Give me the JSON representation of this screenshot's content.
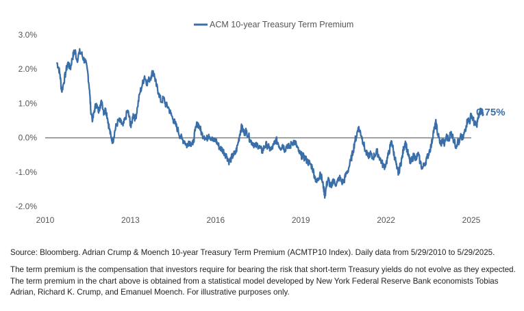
{
  "colors": {
    "series": "#3a6ea8",
    "zero_line": "#808080",
    "tick_text": "#555555"
  },
  "chart_data": {
    "type": "line",
    "series": [
      {
        "name": "ACM 10-year Treasury Term Premium",
        "points": [
          [
            2010.41,
            2.2
          ],
          [
            2010.47,
            2.05
          ],
          [
            2010.52,
            1.85
          ],
          [
            2010.58,
            1.35
          ],
          [
            2010.65,
            1.6
          ],
          [
            2010.72,
            1.9
          ],
          [
            2010.8,
            2.2
          ],
          [
            2010.88,
            2.0
          ],
          [
            2010.95,
            2.3
          ],
          [
            2011.0,
            2.45
          ],
          [
            2011.05,
            2.55
          ],
          [
            2011.12,
            2.25
          ],
          [
            2011.2,
            2.5
          ],
          [
            2011.28,
            2.45
          ],
          [
            2011.35,
            2.3
          ],
          [
            2011.42,
            2.2
          ],
          [
            2011.5,
            1.9
          ],
          [
            2011.56,
            1.4
          ],
          [
            2011.6,
            0.85
          ],
          [
            2011.67,
            0.5
          ],
          [
            2011.73,
            0.8
          ],
          [
            2011.8,
            1.0
          ],
          [
            2011.87,
            0.75
          ],
          [
            2011.93,
            0.95
          ],
          [
            2012.0,
            1.05
          ],
          [
            2012.07,
            0.7
          ],
          [
            2012.13,
            0.85
          ],
          [
            2012.2,
            0.55
          ],
          [
            2012.25,
            0.3
          ],
          [
            2012.32,
            0.0
          ],
          [
            2012.38,
            -0.1
          ],
          [
            2012.44,
            0.15
          ],
          [
            2012.5,
            0.35
          ],
          [
            2012.58,
            0.5
          ],
          [
            2012.66,
            0.45
          ],
          [
            2012.74,
            0.35
          ],
          [
            2012.82,
            0.55
          ],
          [
            2012.9,
            0.8
          ],
          [
            2012.96,
            0.6
          ],
          [
            2013.02,
            0.3
          ],
          [
            2013.1,
            0.7
          ],
          [
            2013.18,
            0.55
          ],
          [
            2013.25,
            0.9
          ],
          [
            2013.33,
            1.3
          ],
          [
            2013.42,
            1.55
          ],
          [
            2013.5,
            1.8
          ],
          [
            2013.58,
            1.6
          ],
          [
            2013.66,
            1.7
          ],
          [
            2013.73,
            1.8
          ],
          [
            2013.8,
            1.95
          ],
          [
            2013.86,
            1.75
          ],
          [
            2013.92,
            1.5
          ],
          [
            2014.0,
            1.3
          ],
          [
            2014.08,
            1.05
          ],
          [
            2014.17,
            1.15
          ],
          [
            2014.25,
            0.95
          ],
          [
            2014.33,
            0.9
          ],
          [
            2014.42,
            0.7
          ],
          [
            2014.5,
            0.55
          ],
          [
            2014.58,
            0.4
          ],
          [
            2014.66,
            0.25
          ],
          [
            2014.75,
            0.05
          ],
          [
            2014.83,
            -0.05
          ],
          [
            2014.91,
            -0.1
          ],
          [
            2015.0,
            -0.25
          ],
          [
            2015.05,
            -0.1
          ],
          [
            2015.12,
            -0.15
          ],
          [
            2015.2,
            -0.2
          ],
          [
            2015.28,
            0.2
          ],
          [
            2015.36,
            0.45
          ],
          [
            2015.44,
            0.3
          ],
          [
            2015.52,
            0.1
          ],
          [
            2015.6,
            0.05
          ],
          [
            2015.68,
            -0.05
          ],
          [
            2015.76,
            0.1
          ],
          [
            2015.84,
            0.0
          ],
          [
            2015.92,
            -0.1
          ],
          [
            2016.0,
            -0.05
          ],
          [
            2016.08,
            -0.2
          ],
          [
            2016.16,
            -0.3
          ],
          [
            2016.24,
            -0.35
          ],
          [
            2016.32,
            -0.45
          ],
          [
            2016.4,
            -0.55
          ],
          [
            2016.48,
            -0.7
          ],
          [
            2016.55,
            -0.6
          ],
          [
            2016.62,
            -0.5
          ],
          [
            2016.7,
            -0.45
          ],
          [
            2016.78,
            -0.2
          ],
          [
            2016.85,
            0.1
          ],
          [
            2016.9,
            0.3
          ],
          [
            2016.95,
            0.25
          ],
          [
            2017.0,
            0.15
          ],
          [
            2017.08,
            0.2
          ],
          [
            2017.16,
            0.05
          ],
          [
            2017.24,
            -0.1
          ],
          [
            2017.32,
            -0.15
          ],
          [
            2017.4,
            -0.25
          ],
          [
            2017.48,
            -0.2
          ],
          [
            2017.56,
            -0.3
          ],
          [
            2017.64,
            -0.4
          ],
          [
            2017.72,
            -0.25
          ],
          [
            2017.8,
            -0.2
          ],
          [
            2017.88,
            -0.3
          ],
          [
            2017.96,
            -0.35
          ],
          [
            2018.05,
            -0.2
          ],
          [
            2018.12,
            -0.05
          ],
          [
            2018.2,
            -0.15
          ],
          [
            2018.28,
            -0.3
          ],
          [
            2018.36,
            -0.2
          ],
          [
            2018.44,
            -0.35
          ],
          [
            2018.52,
            -0.2
          ],
          [
            2018.6,
            -0.3
          ],
          [
            2018.68,
            -0.15
          ],
          [
            2018.76,
            -0.1
          ],
          [
            2018.84,
            -0.2
          ],
          [
            2018.92,
            -0.4
          ],
          [
            2019.0,
            -0.5
          ],
          [
            2019.08,
            -0.55
          ],
          [
            2019.16,
            -0.6
          ],
          [
            2019.24,
            -0.7
          ],
          [
            2019.32,
            -0.75
          ],
          [
            2019.4,
            -0.85
          ],
          [
            2019.48,
            -1.1
          ],
          [
            2019.56,
            -1.3
          ],
          [
            2019.62,
            -1.2
          ],
          [
            2019.68,
            -1.0
          ],
          [
            2019.74,
            -1.2
          ],
          [
            2019.8,
            -1.45
          ],
          [
            2019.85,
            -1.7
          ],
          [
            2019.9,
            -1.4
          ],
          [
            2019.96,
            -1.2
          ],
          [
            2020.02,
            -1.35
          ],
          [
            2020.08,
            -1.45
          ],
          [
            2020.14,
            -1.2
          ],
          [
            2020.2,
            -1.35
          ],
          [
            2020.28,
            -1.3
          ],
          [
            2020.36,
            -1.15
          ],
          [
            2020.44,
            -1.3
          ],
          [
            2020.52,
            -1.25
          ],
          [
            2020.6,
            -1.05
          ],
          [
            2020.68,
            -0.9
          ],
          [
            2020.76,
            -0.65
          ],
          [
            2020.84,
            -0.4
          ],
          [
            2020.9,
            -0.1
          ],
          [
            2020.96,
            0.05
          ],
          [
            2021.02,
            0.3
          ],
          [
            2021.08,
            0.2
          ],
          [
            2021.14,
            0.05
          ],
          [
            2021.2,
            -0.15
          ],
          [
            2021.28,
            -0.4
          ],
          [
            2021.36,
            -0.55
          ],
          [
            2021.44,
            -0.45
          ],
          [
            2021.52,
            -0.6
          ],
          [
            2021.6,
            -0.5
          ],
          [
            2021.68,
            -0.4
          ],
          [
            2021.76,
            -0.55
          ],
          [
            2021.84,
            -0.7
          ],
          [
            2021.92,
            -0.85
          ],
          [
            2022.0,
            -0.75
          ],
          [
            2022.08,
            -0.5
          ],
          [
            2022.15,
            -0.25
          ],
          [
            2022.2,
            -0.1
          ],
          [
            2022.26,
            -0.4
          ],
          [
            2022.32,
            -0.6
          ],
          [
            2022.38,
            -0.9
          ],
          [
            2022.44,
            -1.05
          ],
          [
            2022.5,
            -0.8
          ],
          [
            2022.56,
            -0.6
          ],
          [
            2022.62,
            -0.3
          ],
          [
            2022.68,
            -0.1
          ],
          [
            2022.74,
            -0.35
          ],
          [
            2022.8,
            -0.55
          ],
          [
            2022.86,
            -0.75
          ],
          [
            2022.92,
            -0.6
          ],
          [
            2023.0,
            -0.5
          ],
          [
            2023.06,
            -0.65
          ],
          [
            2023.12,
            -0.45
          ],
          [
            2023.2,
            -0.7
          ],
          [
            2023.28,
            -0.9
          ],
          [
            2023.36,
            -0.75
          ],
          [
            2023.44,
            -0.6
          ],
          [
            2023.52,
            -0.4
          ],
          [
            2023.6,
            -0.2
          ],
          [
            2023.66,
            0.15
          ],
          [
            2023.72,
            0.3
          ],
          [
            2023.76,
            0.45
          ],
          [
            2023.8,
            0.2
          ],
          [
            2023.86,
            0.0
          ],
          [
            2023.92,
            -0.2
          ],
          [
            2024.0,
            -0.05
          ],
          [
            2024.06,
            -0.2
          ],
          [
            2024.12,
            0.05
          ],
          [
            2024.2,
            -0.05
          ],
          [
            2024.28,
            0.15
          ],
          [
            2024.34,
            0.05
          ],
          [
            2024.4,
            -0.1
          ],
          [
            2024.46,
            -0.25
          ],
          [
            2024.52,
            -0.1
          ],
          [
            2024.58,
            -0.15
          ],
          [
            2024.64,
            0.05
          ],
          [
            2024.7,
            -0.05
          ],
          [
            2024.76,
            0.15
          ],
          [
            2024.82,
            0.35
          ],
          [
            2024.88,
            0.55
          ],
          [
            2024.94,
            0.45
          ],
          [
            2025.0,
            0.7
          ],
          [
            2025.06,
            0.55
          ],
          [
            2025.12,
            0.4
          ],
          [
            2025.18,
            0.35
          ],
          [
            2025.24,
            0.55
          ],
          [
            2025.3,
            0.75
          ],
          [
            2025.36,
            0.8
          ],
          [
            2025.41,
            0.75
          ]
        ]
      }
    ],
    "x_ticks": [
      "2010",
      "2013",
      "2016",
      "2019",
      "2022",
      "2025"
    ],
    "x_tick_values": [
      2010,
      2013,
      2016,
      2019,
      2022,
      2025
    ],
    "y_ticks": [
      "3.0%",
      "2.0%",
      "1.0%",
      "0.0%",
      "-1.0%",
      "-2.0%"
    ],
    "y_tick_values": [
      3,
      2,
      1,
      0,
      -1,
      -2
    ],
    "xlim": [
      2010,
      2025
    ],
    "ylim": [
      -2,
      3
    ],
    "grid": false,
    "legend_position": "top-center",
    "end_label": "0.75%",
    "end_value": 0.75
  },
  "notes": {
    "source": "Source: Bloomberg. Adrian Crump & Moench 10-year Treasury Term Premium (ACMTP10 Index). Daily data from 5/29/2010 to 5/29/2025.",
    "description": "The term premium is the compensation that investors require for bearing the risk that short-term Treasury yields do not evolve as they expected. The term premium in the chart above is obtained from a statistical model developed by New York Federal Reserve Bank economists Tobias Adrian, Richard K. Crump, and Emanuel Moench. For illustrative purposes only."
  }
}
